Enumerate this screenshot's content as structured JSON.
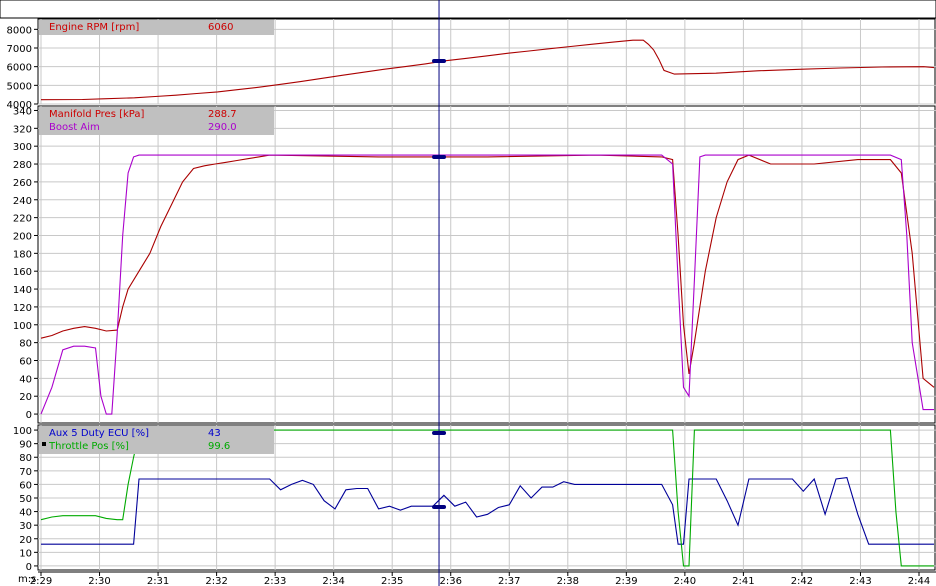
{
  "chart_data": [
    {
      "type": "line",
      "panel": "rpm",
      "ylim": [
        4000,
        8500
      ],
      "yticks": [
        4000,
        5000,
        6000,
        7000,
        8000
      ],
      "legend": [
        {
          "name": "Engine RPM [rpm]",
          "cursor_value": "6060",
          "color": "#cc0000"
        }
      ],
      "series": [
        {
          "name": "Engine RPM [rpm]",
          "color": "#aa0000",
          "points": [
            [
              149,
              4230
            ],
            [
              153,
              4240
            ],
            [
              155,
              4280
            ],
            [
              158,
              4330
            ],
            [
              160,
              4400
            ],
            [
              162,
              4470
            ],
            [
              164,
              4560
            ],
            [
              166,
              4650
            ],
            [
              168,
              4770
            ],
            [
              170,
              4900
            ],
            [
              172,
              5050
            ],
            [
              174,
              5200
            ],
            [
              176,
              5370
            ],
            [
              178,
              5540
            ],
            [
              180,
              5700
            ],
            [
              182,
              5860
            ],
            [
              184,
              6000
            ],
            [
              186,
              6150
            ],
            [
              188,
              6320
            ],
            [
              190,
              6450
            ],
            [
              192,
              6580
            ],
            [
              194,
              6720
            ],
            [
              196,
              6840
            ],
            [
              198,
              6960
            ],
            [
              200,
              7080
            ],
            [
              202,
              7200
            ],
            [
              204,
              7310
            ],
            [
              206,
              7420
            ],
            [
              207,
              7420
            ],
            [
              207.5,
              7200
            ],
            [
              208,
              6900
            ],
            [
              208.5,
              6400
            ],
            [
              209,
              5800
            ],
            [
              210,
              5600
            ],
            [
              214,
              5650
            ],
            [
              218,
              5780
            ],
            [
              222,
              5860
            ],
            [
              226,
              5930
            ],
            [
              230,
              5980
            ],
            [
              234,
              6000
            ],
            [
              235,
              5950
            ]
          ]
        }
      ]
    },
    {
      "type": "line",
      "panel": "boost",
      "ylim": [
        -10,
        345
      ],
      "yticks": [
        0,
        20,
        40,
        60,
        80,
        100,
        120,
        140,
        160,
        180,
        200,
        220,
        240,
        260,
        280,
        300,
        320,
        340
      ],
      "legend": [
        {
          "name": "Manifold Pres [kPa]",
          "cursor_value": "288.7",
          "color": "#cc0000"
        },
        {
          "name": "Boost Aim",
          "cursor_value": "290.0",
          "color": "#aa00cc"
        }
      ],
      "series": [
        {
          "name": "Manifold Pres [kPa]",
          "color": "#aa0000",
          "points": [
            [
              149,
              85
            ],
            [
              150,
              88
            ],
            [
              151,
              93
            ],
            [
              152,
              96
            ],
            [
              153,
              98
            ],
            [
              154,
              96
            ],
            [
              155,
              93
            ],
            [
              156,
              94
            ],
            [
              156.5,
              120
            ],
            [
              157,
              140
            ],
            [
              158,
              160
            ],
            [
              159,
              180
            ],
            [
              160,
              210
            ],
            [
              161,
              235
            ],
            [
              162,
              260
            ],
            [
              163,
              275
            ],
            [
              164,
              278
            ],
            [
              165,
              280
            ],
            [
              166,
              282
            ],
            [
              167,
              284
            ],
            [
              168,
              286
            ],
            [
              169,
              288
            ],
            [
              170,
              290
            ],
            [
              180,
              288
            ],
            [
              190,
              288
            ],
            [
              200,
              290
            ],
            [
              206,
              288
            ],
            [
              207,
              285
            ],
            [
              207.5,
              200
            ],
            [
              208,
              100
            ],
            [
              208.5,
              45
            ],
            [
              209,
              80
            ],
            [
              210,
              160
            ],
            [
              211,
              220
            ],
            [
              212,
              260
            ],
            [
              213,
              285
            ],
            [
              214,
              290
            ],
            [
              216,
              280
            ],
            [
              220,
              280
            ],
            [
              224,
              285
            ],
            [
              227,
              285
            ],
            [
              228,
              270
            ],
            [
              229,
              180
            ],
            [
              230,
              40
            ],
            [
              231,
              30
            ]
          ]
        },
        {
          "name": "Boost Aim",
          "color": "#aa00cc",
          "points": [
            [
              149,
              0
            ],
            [
              150,
              30
            ],
            [
              151,
              72
            ],
            [
              152,
              76
            ],
            [
              153,
              76
            ],
            [
              154,
              74
            ],
            [
              154.5,
              20
            ],
            [
              155,
              0
            ],
            [
              155.5,
              0
            ],
            [
              156,
              90
            ],
            [
              156.5,
              200
            ],
            [
              157,
              270
            ],
            [
              157.5,
              288
            ],
            [
              158,
              290
            ],
            [
              206,
              290
            ],
            [
              207,
              280
            ],
            [
              207.5,
              150
            ],
            [
              208,
              30
            ],
            [
              208.5,
              20
            ],
            [
              209,
              150
            ],
            [
              209.5,
              288
            ],
            [
              210,
              290
            ],
            [
              227,
              290
            ],
            [
              228,
              285
            ],
            [
              228.5,
              200
            ],
            [
              229,
              80
            ],
            [
              230,
              5
            ],
            [
              231,
              5
            ]
          ]
        }
      ]
    },
    {
      "type": "line",
      "panel": "duty",
      "ylim": [
        -3,
        103
      ],
      "yticks": [
        0,
        10,
        20,
        30,
        40,
        50,
        60,
        70,
        80,
        90,
        100
      ],
      "legend": [
        {
          "name": "Aux 5 Duty ECU [%]",
          "cursor_value": "43",
          "color": "#0000cc"
        },
        {
          "name": "Throttle Pos [%]",
          "cursor_value": "99.6",
          "color": "#00aa00"
        }
      ],
      "series": [
        {
          "name": "Aux 5 Duty ECU [%]",
          "color": "#000099",
          "points": [
            [
              149,
              16
            ],
            [
              155,
              16
            ],
            [
              157.5,
              16
            ],
            [
              158,
              64
            ],
            [
              170,
              64
            ],
            [
              171,
              56
            ],
            [
              172,
              60
            ],
            [
              173,
              63
            ],
            [
              174,
              60
            ],
            [
              175,
              48
            ],
            [
              176,
              42
            ],
            [
              177,
              56
            ],
            [
              178,
              57
            ],
            [
              179,
              57
            ],
            [
              180,
              42
            ],
            [
              181,
              44
            ],
            [
              182,
              41
            ],
            [
              183,
              44
            ],
            [
              185,
              44
            ],
            [
              186,
              52
            ],
            [
              187,
              44
            ],
            [
              188,
              47
            ],
            [
              189,
              36
            ],
            [
              190,
              38
            ],
            [
              191,
              43
            ],
            [
              192,
              45
            ],
            [
              193,
              59
            ],
            [
              194,
              50
            ],
            [
              195,
              58
            ],
            [
              196,
              58
            ],
            [
              197,
              62
            ],
            [
              198,
              60
            ],
            [
              206,
              60
            ],
            [
              207,
              45
            ],
            [
              207.5,
              16
            ],
            [
              208,
              16
            ],
            [
              208.5,
              64
            ],
            [
              211,
              64
            ],
            [
              212,
              48
            ],
            [
              213,
              30
            ],
            [
              214,
              64
            ],
            [
              218,
              64
            ],
            [
              219,
              55
            ],
            [
              220,
              64
            ],
            [
              221,
              38
            ],
            [
              222,
              64
            ],
            [
              223,
              65
            ],
            [
              224,
              38
            ],
            [
              225,
              16
            ],
            [
              226,
              16
            ],
            [
              231,
              16
            ]
          ]
        },
        {
          "name": "Throttle Pos [%]",
          "color": "#00aa00",
          "points": [
            [
              149,
              34
            ],
            [
              150,
              36
            ],
            [
              151,
              37
            ],
            [
              152,
              37
            ],
            [
              153,
              37
            ],
            [
              154,
              37
            ],
            [
              155,
              35
            ],
            [
              156,
              34
            ],
            [
              156.5,
              34
            ],
            [
              157,
              60
            ],
            [
              157.5,
              80
            ],
            [
              158,
              97
            ],
            [
              158.5,
              100
            ],
            [
              207,
              100
            ],
            [
              207.5,
              40
            ],
            [
              208,
              0
            ],
            [
              208.5,
              0
            ],
            [
              209,
              100
            ],
            [
              209.5,
              100
            ],
            [
              227,
              100
            ],
            [
              227.5,
              40
            ],
            [
              228,
              0
            ],
            [
              230,
              0
            ],
            [
              231,
              0
            ]
          ]
        }
      ]
    }
  ],
  "x_axis": {
    "xlim": [
      149.2,
      235.5
    ],
    "label_left": "m:s",
    "ticks": [
      {
        "v": 149,
        "label": "2:29"
      },
      {
        "v": 150,
        "label": "2:30"
      },
      {
        "v": 151,
        "label": "2:31"
      },
      {
        "v": 152,
        "label": "2:32"
      },
      {
        "v": 153,
        "label": "2:33"
      },
      {
        "v": 154,
        "label": "2:34"
      },
      {
        "v": 155,
        "label": "2:35"
      },
      {
        "v": 156,
        "label": "2:36"
      },
      {
        "v": 157,
        "label": "2:37"
      },
      {
        "v": 158,
        "label": "2:38"
      },
      {
        "v": 159,
        "label": "2:39"
      },
      {
        "v": 160,
        "label": "2:40"
      },
      {
        "v": 161,
        "label": "2:41"
      },
      {
        "v": 162,
        "label": "2:42"
      },
      {
        "v": 163,
        "label": "2:43"
      },
      {
        "v": 164,
        "label": "2:44"
      }
    ],
    "cursor_time": 155.8
  }
}
